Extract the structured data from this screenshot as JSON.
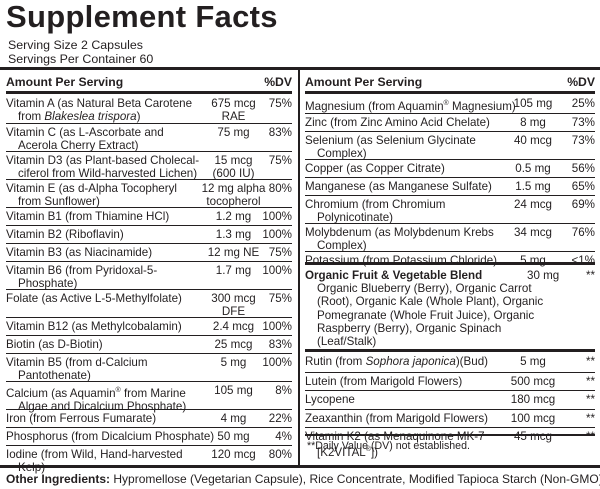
{
  "title": "Supplement Facts",
  "serving_size": "Serving Size 2 Capsules",
  "servings_per_container": "Servings Per Container 60",
  "header": {
    "amount_per_serving": "Amount Per Serving",
    "dv": "%DV"
  },
  "left": [
    {
      "name": [
        "Vitamin A (as Natural Beta Carotene",
        "from Blakeslea trispora)"
      ],
      "amount": [
        "675 mcg",
        "RAE"
      ],
      "dv": "75%"
    },
    {
      "name": [
        "Vitamin C (as L-Ascorbate and",
        "Acerola Cherry Extract)"
      ],
      "amount": [
        "75 mg"
      ],
      "dv": "83%"
    },
    {
      "name": [
        "Vitamin D3 (as Plant-based Cholecal-",
        "ciferol from Wild-harvested Lichen)"
      ],
      "amount": [
        "15 mcg",
        "(600 IU)"
      ],
      "dv": "75%"
    },
    {
      "name": [
        "Vitamin E (as d-Alpha Tocopheryl",
        "from Sunflower)"
      ],
      "amount": [
        "12 mg alpha",
        "tocopherol"
      ],
      "dv": "80%"
    },
    {
      "name": [
        "Vitamin B1 (from Thiamine HCl)"
      ],
      "amount": [
        "1.2 mg"
      ],
      "dv": "100%"
    },
    {
      "name": [
        "Vitamin B2 (Riboflavin)"
      ],
      "amount": [
        "1.3 mg"
      ],
      "dv": "100%"
    },
    {
      "name": [
        "Vitamin B3 (as Niacinamide)"
      ],
      "amount": [
        "12 mg NE"
      ],
      "dv": "75%"
    },
    {
      "name": [
        "Vitamin B6 (from Pyridoxal-5-",
        "Phosphate)"
      ],
      "amount": [
        "1.7 mg"
      ],
      "dv": "100%"
    },
    {
      "name": [
        "Folate (as Active L-5-Methylfolate)"
      ],
      "amount": [
        "300 mcg",
        "DFE"
      ],
      "dv": "75%"
    },
    {
      "name": [
        "Vitamin B12 (as Methylcobalamin)"
      ],
      "amount": [
        "2.4 mcg"
      ],
      "dv": "100%"
    },
    {
      "name": [
        "Biotin (as D-Biotin)"
      ],
      "amount": [
        "25 mcg"
      ],
      "dv": "83%"
    },
    {
      "name": [
        "Vitamin B5 (from d-Calcium",
        "Pantothenate)"
      ],
      "amount": [
        "5 mg"
      ],
      "dv": "100%"
    },
    {
      "name": [
        "Calcium (as Aquamin® from Marine",
        "Algae and Dicalcium Phosphate)"
      ],
      "amount": [
        "105 mg"
      ],
      "dv": "8%"
    },
    {
      "name": [
        "Iron (from Ferrous Fumarate)"
      ],
      "amount": [
        "4 mg"
      ],
      "dv": "22%"
    },
    {
      "name": [
        "Phosphorus (from Dicalcium Phosphate)"
      ],
      "amount": [
        "50 mg"
      ],
      "dv": "4%"
    },
    {
      "name": [
        "Iodine (from Wild, Hand-harvested",
        "Kelp)"
      ],
      "amount": [
        "120 mcg"
      ],
      "dv": "80%"
    }
  ],
  "right": [
    {
      "name": [
        "Magnesium (from Aquamin® Magnesium)"
      ],
      "amount": [
        "105 mg"
      ],
      "dv": "25%"
    },
    {
      "name": [
        "Zinc (from Zinc Amino Acid Chelate)"
      ],
      "amount": [
        "8 mg"
      ],
      "dv": "73%"
    },
    {
      "name": [
        "Selenium (as Selenium Glycinate",
        "Complex)"
      ],
      "amount": [
        "40 mcg"
      ],
      "dv": "73%"
    },
    {
      "name": [
        "Copper (as Copper Citrate)"
      ],
      "amount": [
        "0.5 mg"
      ],
      "dv": "56%"
    },
    {
      "name": [
        "Manganese (as Manganese Sulfate)"
      ],
      "amount": [
        "1.5 mg"
      ],
      "dv": "65%"
    },
    {
      "name": [
        "Chromium (from Chromium",
        "Polynicotinate)"
      ],
      "amount": [
        "24 mcg"
      ],
      "dv": "69%"
    },
    {
      "name": [
        "Molybdenum (as Molybdenum Krebs",
        "Complex)"
      ],
      "amount": [
        "34 mcg"
      ],
      "dv": "76%"
    },
    {
      "name": [
        "Potassium (from Potassium Chloride)"
      ],
      "amount": [
        "5 mg"
      ],
      "dv": "<1%"
    }
  ],
  "blend": {
    "name": "Organic Fruit & Vegetable Blend",
    "amount": "30 mg",
    "dv": "**",
    "desc": "Organic Blueberry (Berry), Organic Carrot (Root), Organic Kale (Whole Plant), Organic Pomegranate (Whole Fruit Juice), Organic Raspberry (Berry), Organic Spinach (Leaf/Stalk)"
  },
  "right2": [
    {
      "name": [
        "Rutin (from Sophora japonica)(Bud)"
      ],
      "amount": [
        "5 mg"
      ],
      "dv": "**"
    },
    {
      "name": [
        "Lutein (from Marigold Flowers)"
      ],
      "amount": [
        "500 mcg"
      ],
      "dv": "**"
    },
    {
      "name": [
        "Lycopene"
      ],
      "amount": [
        "180 mcg"
      ],
      "dv": "**"
    },
    {
      "name": [
        "Zeaxanthin (from Marigold Flowers)"
      ],
      "amount": [
        "100 mcg"
      ],
      "dv": "**"
    },
    {
      "name": [
        "Vitamin K2 (as Menaquinone MK-7",
        "[K2VITAL®])"
      ],
      "amount": [
        "45 mcg"
      ],
      "dv": "**"
    }
  ],
  "footnote": "**Daily Value (DV) not established.",
  "other_ingredients_label": "Other Ingredients:",
  "other_ingredients": "Hypromellose (Vegetarian Capsule), Rice Concentrate, Modified Tapioca Starch (Non-GMO)."
}
